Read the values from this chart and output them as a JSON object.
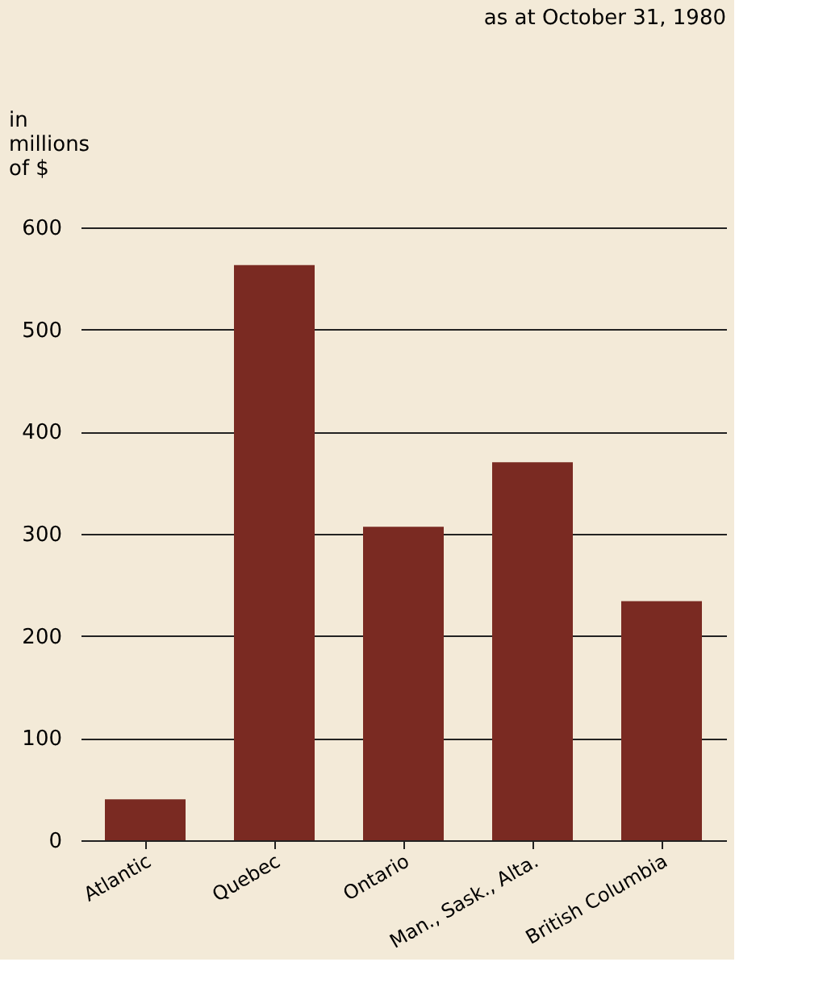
{
  "chart_data": {
    "type": "bar",
    "title": "as at October 31, 1980",
    "ylabel": "in millions of $",
    "categories": [
      "Atlantic",
      "Quebec",
      "Ontario",
      "Man., Sask., Alta.",
      "British Columbia"
    ],
    "values": [
      40,
      563,
      307,
      370,
      234
    ],
    "color": "#7a2a22",
    "ylim": [
      0,
      600
    ],
    "yticks": [
      0,
      100,
      200,
      300,
      400,
      500,
      600
    ],
    "grid": "y"
  }
}
